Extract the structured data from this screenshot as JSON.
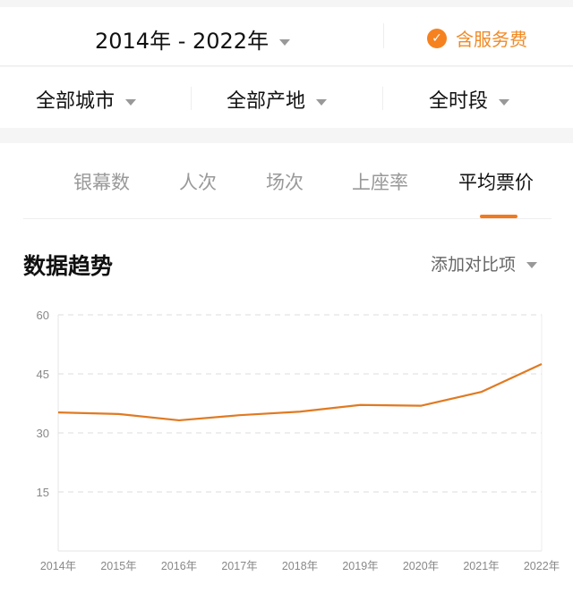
{
  "header": {
    "date_range": "2014年 - 2022年",
    "service_fee_label": "含服务费",
    "service_fee_checked": true
  },
  "filters": [
    {
      "label": "全部城市"
    },
    {
      "label": "全部产地"
    },
    {
      "label": "全时段"
    }
  ],
  "tabs": [
    {
      "label": "银幕数"
    },
    {
      "label": "人次"
    },
    {
      "label": "场次"
    },
    {
      "label": "上座率"
    },
    {
      "label": "平均票价",
      "active": true
    }
  ],
  "section": {
    "title": "数据趋势",
    "compare_label": "添加对比项"
  },
  "colors": {
    "accent": "#f07a20",
    "line": "#e07a22"
  },
  "chart_data": {
    "type": "line",
    "categories": [
      "2014年",
      "2015年",
      "2016年",
      "2017年",
      "2018年",
      "2019年",
      "2020年",
      "2021年",
      "2022年"
    ],
    "series": [
      {
        "values": [
          35.2,
          34.8,
          33.2,
          34.5,
          35.4,
          37.1,
          36.9,
          40.4,
          47.5
        ]
      }
    ],
    "yticks": [
      15,
      30,
      45,
      60
    ],
    "ylim": [
      0,
      60
    ],
    "grid": true
  }
}
